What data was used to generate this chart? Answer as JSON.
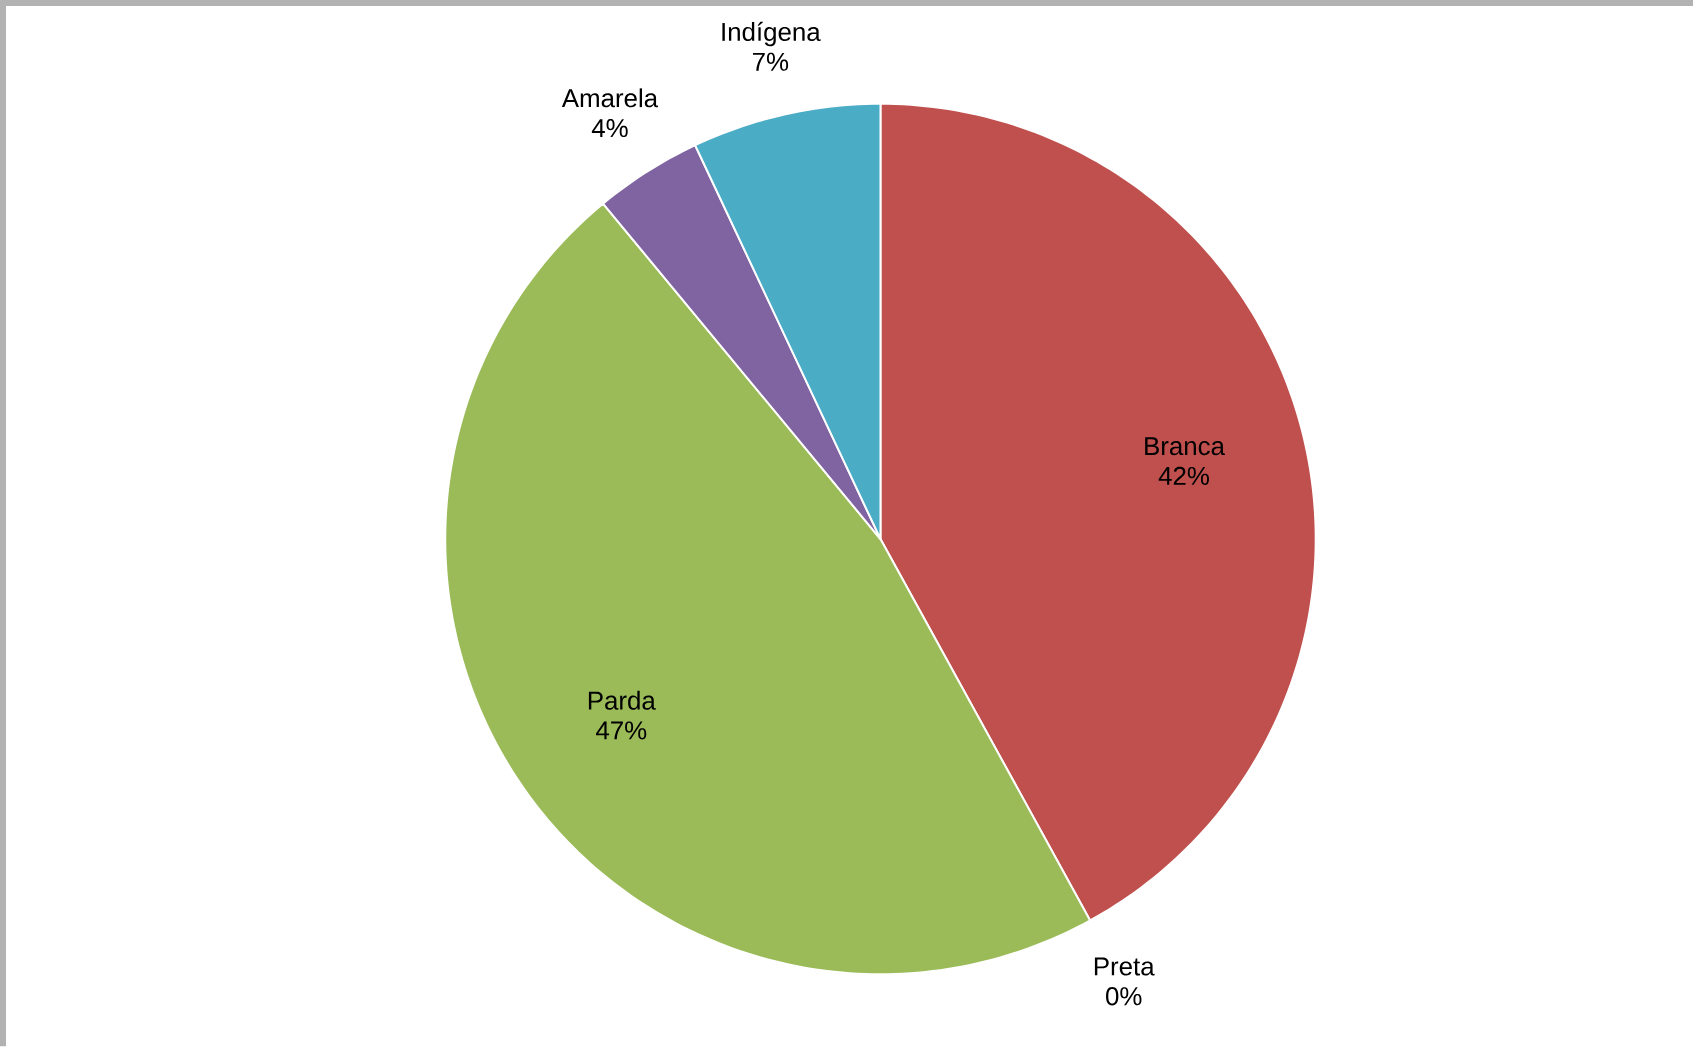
{
  "chart_data": {
    "type": "pie",
    "categories": [
      "Branca",
      "Preta",
      "Parda",
      "Amarela",
      "Indígena"
    ],
    "values": [
      42,
      0,
      47,
      4,
      7
    ],
    "value_labels": [
      "42%",
      "0%",
      "47%",
      "4%",
      "7%"
    ],
    "colors": [
      "#c0504d",
      "#4f81bd",
      "#9bbb59",
      "#8064a2",
      "#4bacc6"
    ]
  }
}
